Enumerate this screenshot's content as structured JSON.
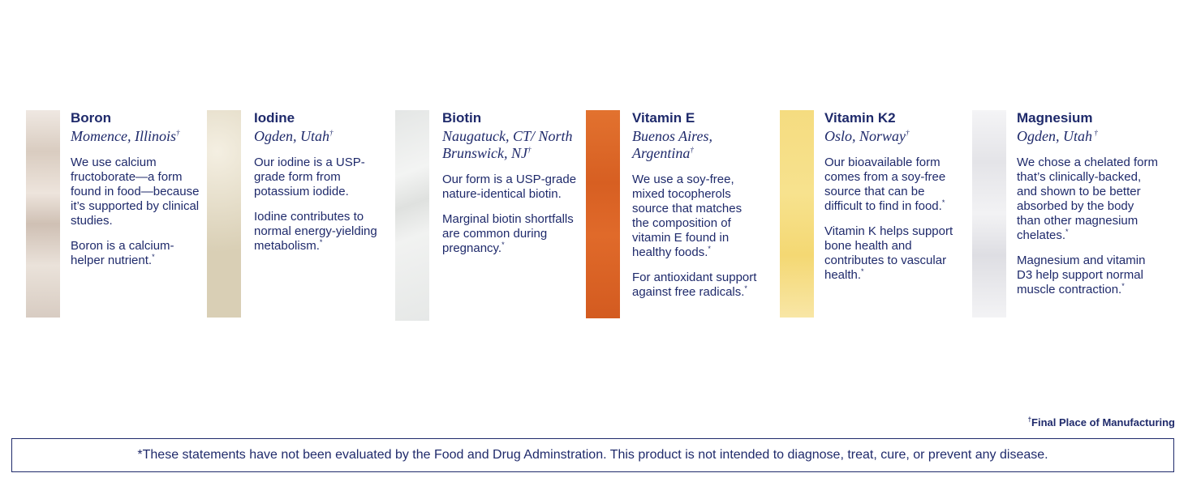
{
  "nutrients": [
    {
      "name": "Boron",
      "location": "Momence, Illinois",
      "loc_mark": "†",
      "p1": "We use calcium fructoborate—a form found in food—because it’s supported by clinical studies.",
      "p1_mark": "",
      "p2": "Boron is a calcium-helper nutrient.",
      "p2_mark": "*",
      "swatch_color": "#e8dfd7"
    },
    {
      "name": "Iodine",
      "location": "Ogden, Utah",
      "loc_mark": "†",
      "p1": "Our iodine is a USP-grade form from potassium iodide.",
      "p1_mark": "",
      "p2": "Iodine contributes to normal energy-yielding metabolism.",
      "p2_mark": "*",
      "swatch_color": "#e6ddc6"
    },
    {
      "name": "Biotin",
      "location": "Naugatuck, CT/ North Brunswick, NJ",
      "loc_mark": "†",
      "p1": "Our form is a USP-grade nature-identical biotin.",
      "p1_mark": "",
      "p2": "Marginal biotin shortfalls are common during pregnancy.",
      "p2_mark": "*",
      "swatch_color": "#eceeed"
    },
    {
      "name": "Vitamin E",
      "location": "Buenos Aires, Argentina",
      "loc_mark": "†",
      "p1": "We use a soy-free, mixed tocopherols source that matches the composition of vitamin E found in healthy foods.",
      "p1_mark": "*",
      "p2": "For antioxidant support against free radicals.",
      "p2_mark": "*",
      "swatch_color": "#e06a2a"
    },
    {
      "name": "Vitamin K2",
      "location": "Oslo, Norway",
      "loc_mark": "†",
      "p1": "Our bioavailable form comes from a soy-free source that can be difficult to find in food.",
      "p1_mark": "*",
      "p2": "Vitamin K helps support bone health and contributes to vascular health.",
      "p2_mark": "*",
      "swatch_color": "#f6df86"
    },
    {
      "name": "Magnesium",
      "location": "Ogden, Utah",
      "loc_mark": " †",
      "p1": "We chose a chelated form that’s clinically-backed, and shown to be better absorbed by the body than other magnesium chelates.",
      "p1_mark": "*",
      "p2": "Magnesium and vitamin D3 help support normal muscle contraction.",
      "p2_mark": "*",
      "swatch_color": "#f1f1f3"
    }
  ],
  "footnote": {
    "mark": "†",
    "text": "Final Place of Manufacturing"
  },
  "disclaimer": "*These statements have not been evaluated by the Food and Drug Adminstration. This product is not intended to diagnose, treat, cure, or prevent any disease."
}
